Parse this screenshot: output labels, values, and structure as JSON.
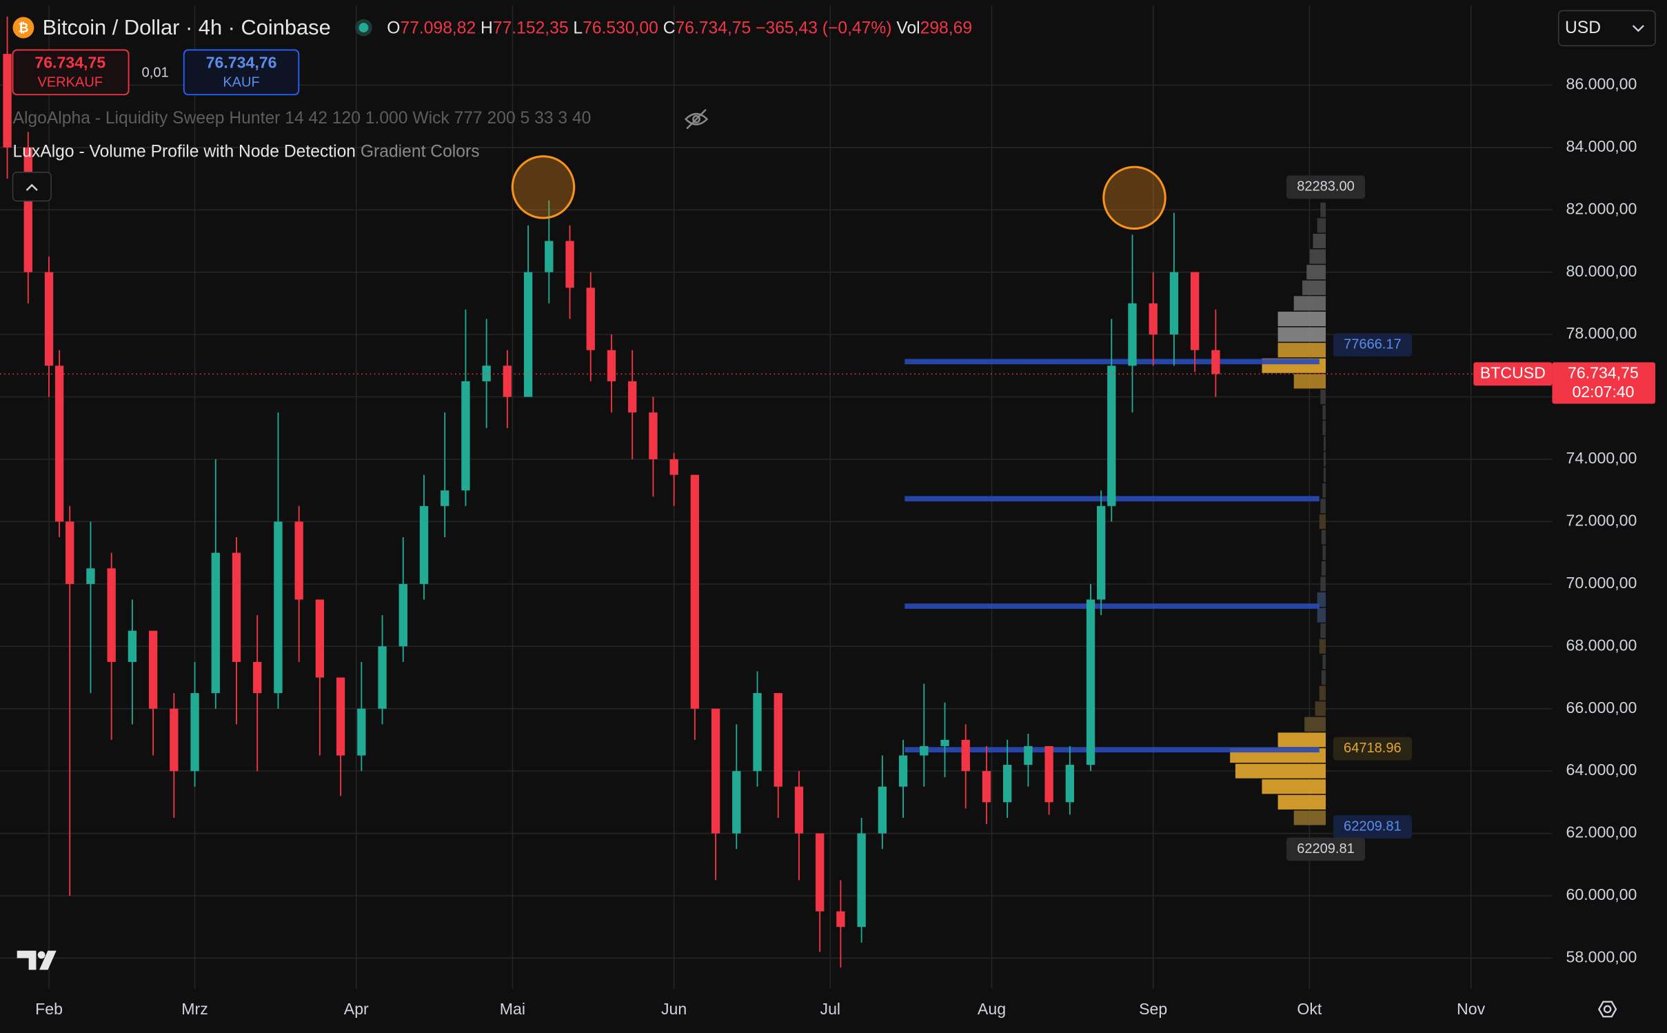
{
  "header": {
    "symbol": "Bitcoin / Dollar · 4h · Coinbase",
    "ohlc": [
      {
        "label": "O",
        "value": "77.098,82"
      },
      {
        "label": "H",
        "value": "77.152,35"
      },
      {
        "label": "L",
        "value": "76.530,00"
      },
      {
        "label": "C",
        "value": "76.734,75"
      }
    ],
    "change": "−365,43 (−0,47%)",
    "volume_label": "Vol",
    "volume": "298,69",
    "currency": "USD"
  },
  "trade": {
    "sell_price": "76.734,75",
    "sell_label": "VERKAUF",
    "spread": "0,01",
    "buy_price": "76.734,76",
    "buy_label": "KAUF"
  },
  "indicators": [
    {
      "name": "AlgoAlpha - Liquidity Sweep Hunter 14 42 120 1.000 Wick 777 200 5 33 3 40"
    },
    {
      "name": "LuxAlgo - Volume Profile with Node Detection",
      "setting": "Gradient Colors"
    }
  ],
  "chart_data": {
    "type": "candlestick",
    "up_color": "#22ab94",
    "down_color": "#f23645",
    "grid": true,
    "x": [
      -8,
      -4,
      0,
      2,
      4,
      8,
      12,
      16,
      20,
      24,
      28,
      32,
      36,
      40,
      44,
      48,
      52,
      56,
      60,
      64,
      68,
      72,
      76,
      80,
      84,
      88,
      92,
      96,
      100,
      104,
      108,
      112,
      116,
      120,
      124,
      128,
      132,
      136,
      140,
      144,
      148,
      152,
      156,
      160,
      164,
      168,
      172,
      176,
      180,
      184,
      188,
      192,
      196,
      200,
      202,
      204,
      208,
      212,
      216,
      220,
      224
    ],
    "open": [
      87000,
      84000,
      80000,
      77000,
      72000,
      70000,
      70500,
      67500,
      68500,
      66000,
      64000,
      66500,
      71000,
      67500,
      66500,
      72000,
      69500,
      67000,
      64500,
      66000,
      68000,
      70000,
      72500,
      73000,
      76500,
      77000,
      76000,
      80000,
      81000,
      79500,
      77500,
      76500,
      75500,
      74000,
      73500,
      66000,
      62000,
      64000,
      66500,
      63500,
      62000,
      59500,
      59000,
      62000,
      63500,
      64500,
      64800,
      65000,
      64000,
      63000,
      64200,
      64800,
      63000,
      64200,
      69500,
      72500,
      77000,
      79000,
      78000,
      80000,
      77500
    ],
    "high": [
      88200,
      84500,
      80500,
      77500,
      72500,
      72000,
      71000,
      69500,
      68500,
      66500,
      67500,
      74000,
      71500,
      69000,
      75500,
      72500,
      69500,
      67000,
      67500,
      69000,
      71500,
      73500,
      75500,
      78800,
      78500,
      77500,
      81500,
      82300,
      81500,
      80000,
      78000,
      77500,
      76000,
      74200,
      73500,
      66000,
      65500,
      67200,
      66500,
      64000,
      62000,
      60500,
      62500,
      64500,
      65000,
      66800,
      66200,
      65500,
      64800,
      65000,
      65200,
      64800,
      64800,
      70000,
      73000,
      78500,
      81200,
      80000,
      81900,
      80000,
      78800
    ],
    "low": [
      83000,
      79000,
      76000,
      71500,
      60000,
      66500,
      65000,
      65500,
      64500,
      62500,
      63500,
      66000,
      65500,
      64000,
      66000,
      67500,
      64500,
      63200,
      64000,
      65500,
      67500,
      69500,
      71500,
      72500,
      75000,
      75000,
      76000,
      79000,
      78500,
      76500,
      75500,
      74000,
      72800,
      72500,
      65000,
      60500,
      61500,
      63500,
      62500,
      60500,
      58200,
      57700,
      58500,
      61500,
      62500,
      63500,
      63800,
      62800,
      62300,
      62500,
      63500,
      62600,
      62600,
      64000,
      69000,
      72000,
      75500,
      77000,
      77000,
      76800,
      76000
    ],
    "close": [
      84000,
      80000,
      77000,
      72000,
      70000,
      70500,
      67500,
      68500,
      66000,
      64000,
      66500,
      71000,
      67500,
      66500,
      72000,
      69500,
      67000,
      64500,
      66000,
      68000,
      70000,
      72500,
      73000,
      76500,
      77000,
      76000,
      80000,
      81000,
      79500,
      77500,
      76500,
      75500,
      74000,
      73500,
      66000,
      62000,
      64000,
      66500,
      63500,
      62000,
      59500,
      59000,
      62000,
      63500,
      64500,
      64800,
      65000,
      64000,
      63000,
      64200,
      64800,
      63000,
      64200,
      69500,
      72500,
      77000,
      79000,
      78000,
      80000,
      77500,
      76734.75
    ],
    "xlim": [
      -9.4,
      288.6
    ],
    "xticks": [
      {
        "value": 0,
        "label": "Feb"
      },
      {
        "value": 28,
        "label": "Mrz"
      },
      {
        "value": 59,
        "label": "Apr"
      },
      {
        "value": 89,
        "label": "Mai"
      },
      {
        "value": 120,
        "label": "Jun"
      },
      {
        "value": 150,
        "label": "Jul"
      },
      {
        "value": 181,
        "label": "Aug"
      },
      {
        "value": 212,
        "label": "Sep"
      },
      {
        "value": 242,
        "label": "Okt"
      },
      {
        "value": 273,
        "label": "Nov"
      }
    ],
    "ylim": [
      57011,
      88558
    ],
    "yticks": [
      {
        "value": 58000,
        "label": "58.000,00"
      },
      {
        "value": 60000,
        "label": "60.000,00"
      },
      {
        "value": 62000,
        "label": "62.000,00"
      },
      {
        "value": 64000,
        "label": "64.000,00"
      },
      {
        "value": 66000,
        "label": "66.000,00"
      },
      {
        "value": 68000,
        "label": "68.000,00"
      },
      {
        "value": 70000,
        "label": "70.000,00"
      },
      {
        "value": 72000,
        "label": "72.000,00"
      },
      {
        "value": 74000,
        "label": "74.000,00"
      },
      {
        "value": 76000,
        "label": "76.000,00"
      },
      {
        "value": 78000,
        "label": "78.000,00"
      },
      {
        "value": 80000,
        "label": "80.000,00"
      },
      {
        "value": 82000,
        "label": "82.000,00"
      },
      {
        "value": 84000,
        "label": "84.000,00"
      },
      {
        "value": 86000,
        "label": "86.000,00"
      }
    ],
    "last_price": {
      "symbol": "BTCUSD",
      "value": 76734.75,
      "label": "76.734,75",
      "countdown": "02:07:40"
    },
    "highlights": [
      {
        "x": 94.9,
        "y": 82726
      },
      {
        "x": 208.4,
        "y": 82385
      }
    ],
    "nodes": {
      "start": 164.3,
      "levels": [
        77132,
        72733,
        69288,
        64684
      ]
    },
    "volume_profile": {
      "bin_size": 500,
      "levels": [
        62500,
        63000,
        63500,
        64000,
        64500,
        65000,
        65500,
        66000,
        66500,
        67000,
        67500,
        68000,
        68500,
        69000,
        69500,
        70000,
        70500,
        71000,
        71500,
        72000,
        72500,
        73000,
        73500,
        74000,
        74500,
        75000,
        75500,
        76000,
        76500,
        77000,
        77500,
        78000,
        78500,
        79000,
        79500,
        80000,
        80500,
        81000,
        81500,
        82000
      ],
      "volumes": [
        30,
        45,
        60,
        85,
        90,
        45,
        20,
        10,
        6,
        4,
        3,
        6,
        5,
        8,
        8,
        5,
        4,
        3,
        4,
        6,
        5,
        3,
        2,
        2,
        2,
        3,
        3,
        5,
        30,
        60,
        45,
        45,
        45,
        30,
        22,
        18,
        15,
        12,
        8,
        5
      ],
      "colors": [
        "#8a6a2a",
        "#e3a72f",
        "#e3a72f",
        "#e3a72f",
        "#e3a72f",
        "#e3a72f",
        "#5a4a2a",
        "#4a3d25",
        "#4a3d25",
        "#3a3a3a",
        "#3a3a3a",
        "#4a3d25",
        "#3a3a3a",
        "#33415e",
        "#33415e",
        "#3a3a3a",
        "#3a3a3a",
        "#3a3a3a",
        "#3a3a3a",
        "#4a3d25",
        "#3a3a3a",
        "#3a3a3a",
        "#3a3a3a",
        "#3a3a3a",
        "#3a3a3a",
        "#3a3a3a",
        "#3a3a3a",
        "#3a3a3a",
        "#b58526",
        "#e3a72f",
        "#c9962b",
        "#8a8a8a",
        "#8a8a8a",
        "#6e6e6e",
        "#5a5a5a",
        "#5a5a5a",
        "#4a4a4a",
        "#4a4a4a",
        "#3c3c3c",
        "#3c3c3c"
      ],
      "labels": [
        {
          "value": 82283,
          "label": "82283.00",
          "kind": "range-high"
        },
        {
          "value": 77666.17,
          "label": "77666.17",
          "kind": "node"
        },
        {
          "value": 64718.96,
          "label": "64718.96",
          "kind": "poc"
        },
        {
          "value": 62209.81,
          "label": "62209.81",
          "kind": "node"
        },
        {
          "value": 62209.81,
          "label": "62209.81",
          "kind": "range-low"
        }
      ]
    }
  }
}
